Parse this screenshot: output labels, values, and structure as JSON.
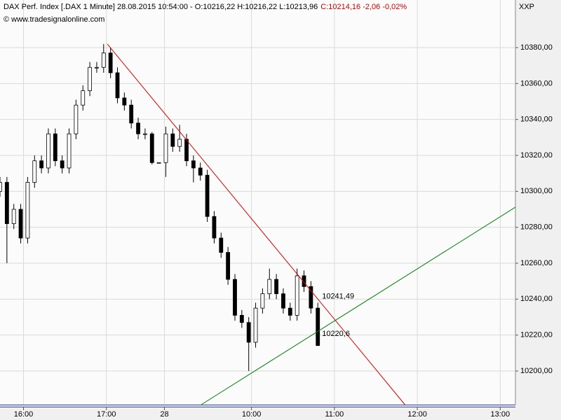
{
  "chart_data": {
    "type": "candlestick",
    "title": "DAX Perf. Index [.DAX  1 Minute] 28.08.2015 10:54:00 - O:10216,22 H:10216,22 L:10213,96",
    "title_change": "C:10214,16 -2,06 -0,02%",
    "subtitle": "© www.tradesignalonline.com",
    "axis_label": "XXP",
    "x": [
      0,
      5,
      10,
      15,
      20,
      25,
      30,
      35,
      40,
      45,
      50,
      55,
      60,
      65,
      70,
      75,
      80,
      85,
      90,
      95,
      100,
      105,
      110,
      115,
      120,
      125,
      130,
      135,
      140,
      145,
      150,
      155,
      160,
      165,
      170,
      175,
      180,
      185,
      190,
      195,
      200,
      205,
      210,
      215,
      220,
      225,
      230
    ],
    "open": [
      10300,
      10305,
      10282,
      10290,
      10274,
      10305,
      10317,
      10313,
      10332,
      10317,
      10313,
      10332,
      10348,
      10356,
      10369,
      10369,
      10377,
      10366,
      10352,
      10348,
      10338,
      10332,
      10332,
      10316,
      10316,
      10332,
      10325,
      10329,
      10317,
      10313,
      10309,
      10286,
      10274,
      10266,
      10251,
      10231,
      10227,
      10216,
      10235,
      10243,
      10251,
      10243,
      10235,
      10231,
      10253,
      10247,
      10235
    ],
    "high": [
      10308,
      10308,
      10293,
      10293,
      10308,
      10320,
      10320,
      10335,
      10335,
      10320,
      10335,
      10351,
      10359,
      10372,
      10372,
      10382,
      10380,
      10369,
      10355,
      10351,
      10341,
      10335,
      10333,
      10316,
      10336,
      10335,
      10337,
      10332,
      10320,
      10316,
      10312,
      10289,
      10277,
      10269,
      10254,
      10234,
      10230,
      10238,
      10246,
      10257,
      10254,
      10246,
      10238,
      10257,
      10256,
      10250,
      10238
    ],
    "low": [
      10297,
      10260,
      10279,
      10271,
      10271,
      10302,
      10310,
      10310,
      10314,
      10310,
      10310,
      10329,
      10345,
      10353,
      10366,
      10366,
      10363,
      10349,
      10345,
      10335,
      10329,
      10329,
      10315,
      10316,
      10308,
      10322,
      10322,
      10314,
      10305,
      10306,
      10283,
      10271,
      10263,
      10248,
      10228,
      10224,
      10200,
      10213,
      10232,
      10240,
      10240,
      10232,
      10228,
      10228,
      10244,
      10232,
      10213.96
    ],
    "close": [
      10305,
      10282,
      10290,
      10274,
      10305,
      10317,
      10313,
      10332,
      10317,
      10313,
      10332,
      10348,
      10356,
      10369,
      10369,
      10377,
      10366,
      10352,
      10348,
      10338,
      10332,
      10332,
      10316,
      10316,
      10332,
      10325,
      10329,
      10317,
      10313,
      10309,
      10286,
      10274,
      10266,
      10251,
      10231,
      10227,
      10216,
      10235,
      10243,
      10251,
      10243,
      10235,
      10231,
      10253,
      10247,
      10235,
      10214.16
    ],
    "up_color": "#ffffff",
    "down_color": "#000000",
    "trendlines": [
      {
        "color": "#e00000",
        "x": [
          77.7,
          293
        ],
        "values": [
          10382,
          10181.3
        ],
        "end_value": 10241.49,
        "end_label": "10241,49"
      },
      {
        "color": "#008000",
        "x": [
          145.7,
          373
        ],
        "values": [
          10181.3,
          10291.2
        ],
        "end_value": 10220.6,
        "end_label": "10220,6"
      }
    ],
    "xlim": [
      0,
      373
    ],
    "xticks": [
      {
        "value": 17,
        "label": "16:00"
      },
      {
        "value": 77,
        "label": "17:00"
      },
      {
        "value": 119,
        "label": "28"
      },
      {
        "value": 182,
        "label": "10:00"
      },
      {
        "value": 242,
        "label": "11:00"
      },
      {
        "value": 302,
        "label": "12:00"
      },
      {
        "value": 362,
        "label": "13:00"
      }
    ],
    "ylim": [
      10181.3,
      10406.5
    ],
    "yticks": [
      {
        "value": 10200,
        "label": "10200,00"
      },
      {
        "value": 10220,
        "label": "10220,00"
      },
      {
        "value": 10240,
        "label": "10240,00"
      },
      {
        "value": 10260,
        "label": "10260,00"
      },
      {
        "value": 10280,
        "label": "10280,00"
      },
      {
        "value": 10300,
        "label": "10300,00"
      },
      {
        "value": 10320,
        "label": "10320,00"
      },
      {
        "value": 10340,
        "label": "10340,00"
      },
      {
        "value": 10360,
        "label": "10360,00"
      },
      {
        "value": 10380,
        "label": "10380,00"
      }
    ],
    "grid": true
  }
}
